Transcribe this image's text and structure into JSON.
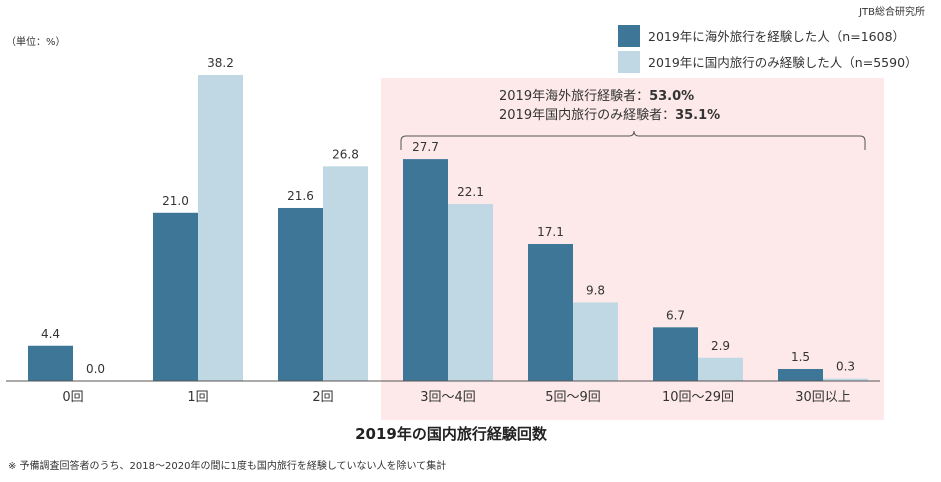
{
  "source": "JTB総合研究所",
  "unit_label": "（単位：%）",
  "footnote": "※ 予備調査回答者のうち、2018～2020年の間に1度も国内旅行を経験していない人を除いて集計",
  "annotation": {
    "line1_prefix": "2019年海外旅行経験者：",
    "line1_value": "53.0%",
    "line2_prefix": "2019年国内旅行のみ経験者：",
    "line2_value": "35.1%"
  },
  "colors": {
    "series1": "#3d7696",
    "series2": "#c0d8e4",
    "highlight": "#fde9ea",
    "axis": "#555555"
  },
  "chart_data": {
    "type": "bar",
    "categories": [
      "0回",
      "1回",
      "2回",
      "3回～4回",
      "5回～9回",
      "10回～29回",
      "30回以上"
    ],
    "series": [
      {
        "name": "2019年に海外旅行を経験した人（n=1608）",
        "values": [
          4.4,
          21.0,
          21.6,
          27.7,
          17.1,
          6.7,
          1.5
        ],
        "labels": [
          "4.4",
          "21.0",
          "21.6",
          "27.7",
          "17.1",
          "6.7",
          "1.5"
        ]
      },
      {
        "name": "2019年に国内旅行のみ経験した人（n=5590）",
        "values": [
          0.0,
          38.2,
          26.8,
          22.1,
          9.8,
          2.9,
          0.3
        ],
        "labels": [
          "0.0",
          "38.2",
          "26.8",
          "22.1",
          "9.8",
          "2.9",
          "0.3"
        ]
      }
    ],
    "xlabel": "2019年の国内旅行経験回数",
    "ylabel": "",
    "ylim": [
      0,
      40
    ],
    "grid": false,
    "legend": "top-right",
    "highlight_categories": [
      "3回～4回",
      "5回～9回",
      "10回～29回",
      "30回以上"
    ]
  }
}
